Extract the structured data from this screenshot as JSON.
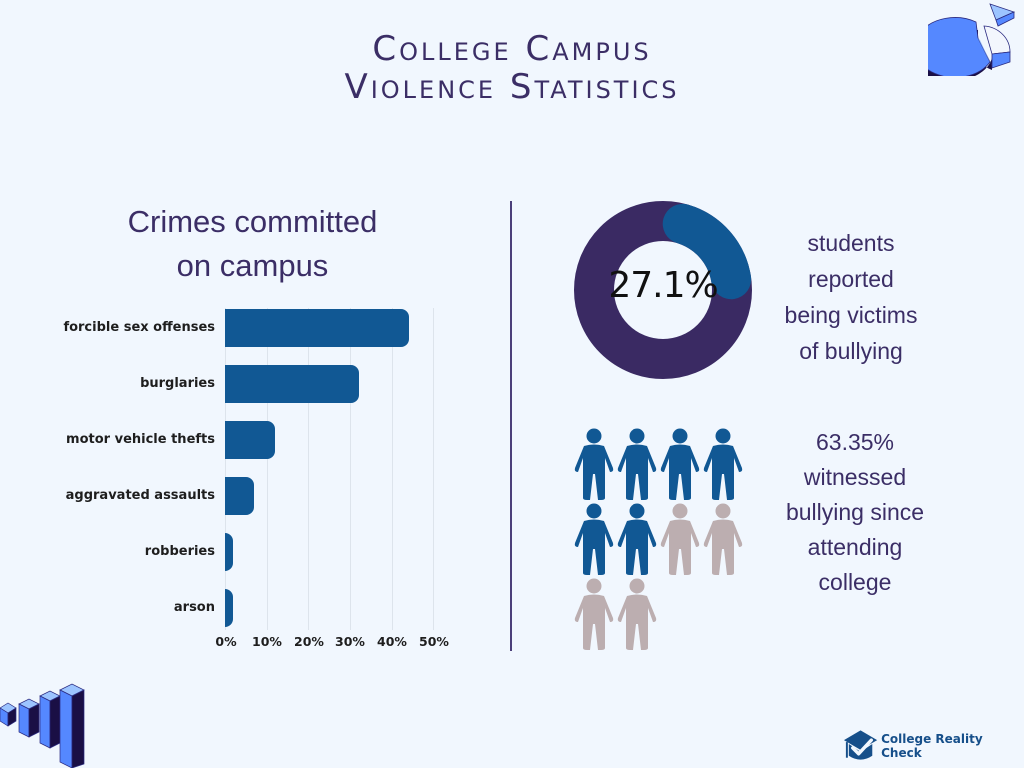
{
  "header": {
    "title_line1": "College Campus",
    "title_line2": "Violence Statistics"
  },
  "decor": {
    "top_right_icon": "3d-pie-chart-icon",
    "bottom_left_icon": "3d-bar-chart-icon"
  },
  "left_panel": {
    "title_line1": "Crimes committed",
    "title_line2": "on campus"
  },
  "chart_data": {
    "type": "bar",
    "orientation": "horizontal",
    "title": "Crimes committed on campus",
    "categories": [
      "forcible sex offenses",
      "burglaries",
      "motor vehicle thefts",
      "aggravated assaults",
      "robberies",
      "arson"
    ],
    "values": [
      44,
      32,
      12,
      7,
      2,
      2
    ],
    "unit": "%",
    "xlabel": "",
    "ylabel": "",
    "xlim": [
      0,
      50
    ],
    "xticks": [
      "0%",
      "10%",
      "20%",
      "30%",
      "40%",
      "50%"
    ],
    "grid": true,
    "bar_color": "#115894"
  },
  "right_panel": {
    "donut": {
      "value_label": "27.1%",
      "value": 27.1,
      "fill_color": "#115894",
      "track_color": "#3a2a63",
      "caption_lines": [
        "students",
        "reported",
        "being victims",
        "of bullying"
      ]
    },
    "pictogram": {
      "total": 10,
      "highlighted": 6,
      "highlight_color": "#115894",
      "base_color": "#bcaeb0",
      "icon": "person-icon",
      "caption_lines": [
        "63.35%",
        "witnessed",
        "bullying since",
        "attending",
        "college"
      ]
    }
  },
  "footer": {
    "brand": "College Reality Check",
    "brand_icon": "graduation-cap-check-icon",
    "brand_color": "#164f8a"
  },
  "colors": {
    "background": "#f1f7fe",
    "text": "#3b2e66",
    "divider": "#4b3f7a"
  }
}
